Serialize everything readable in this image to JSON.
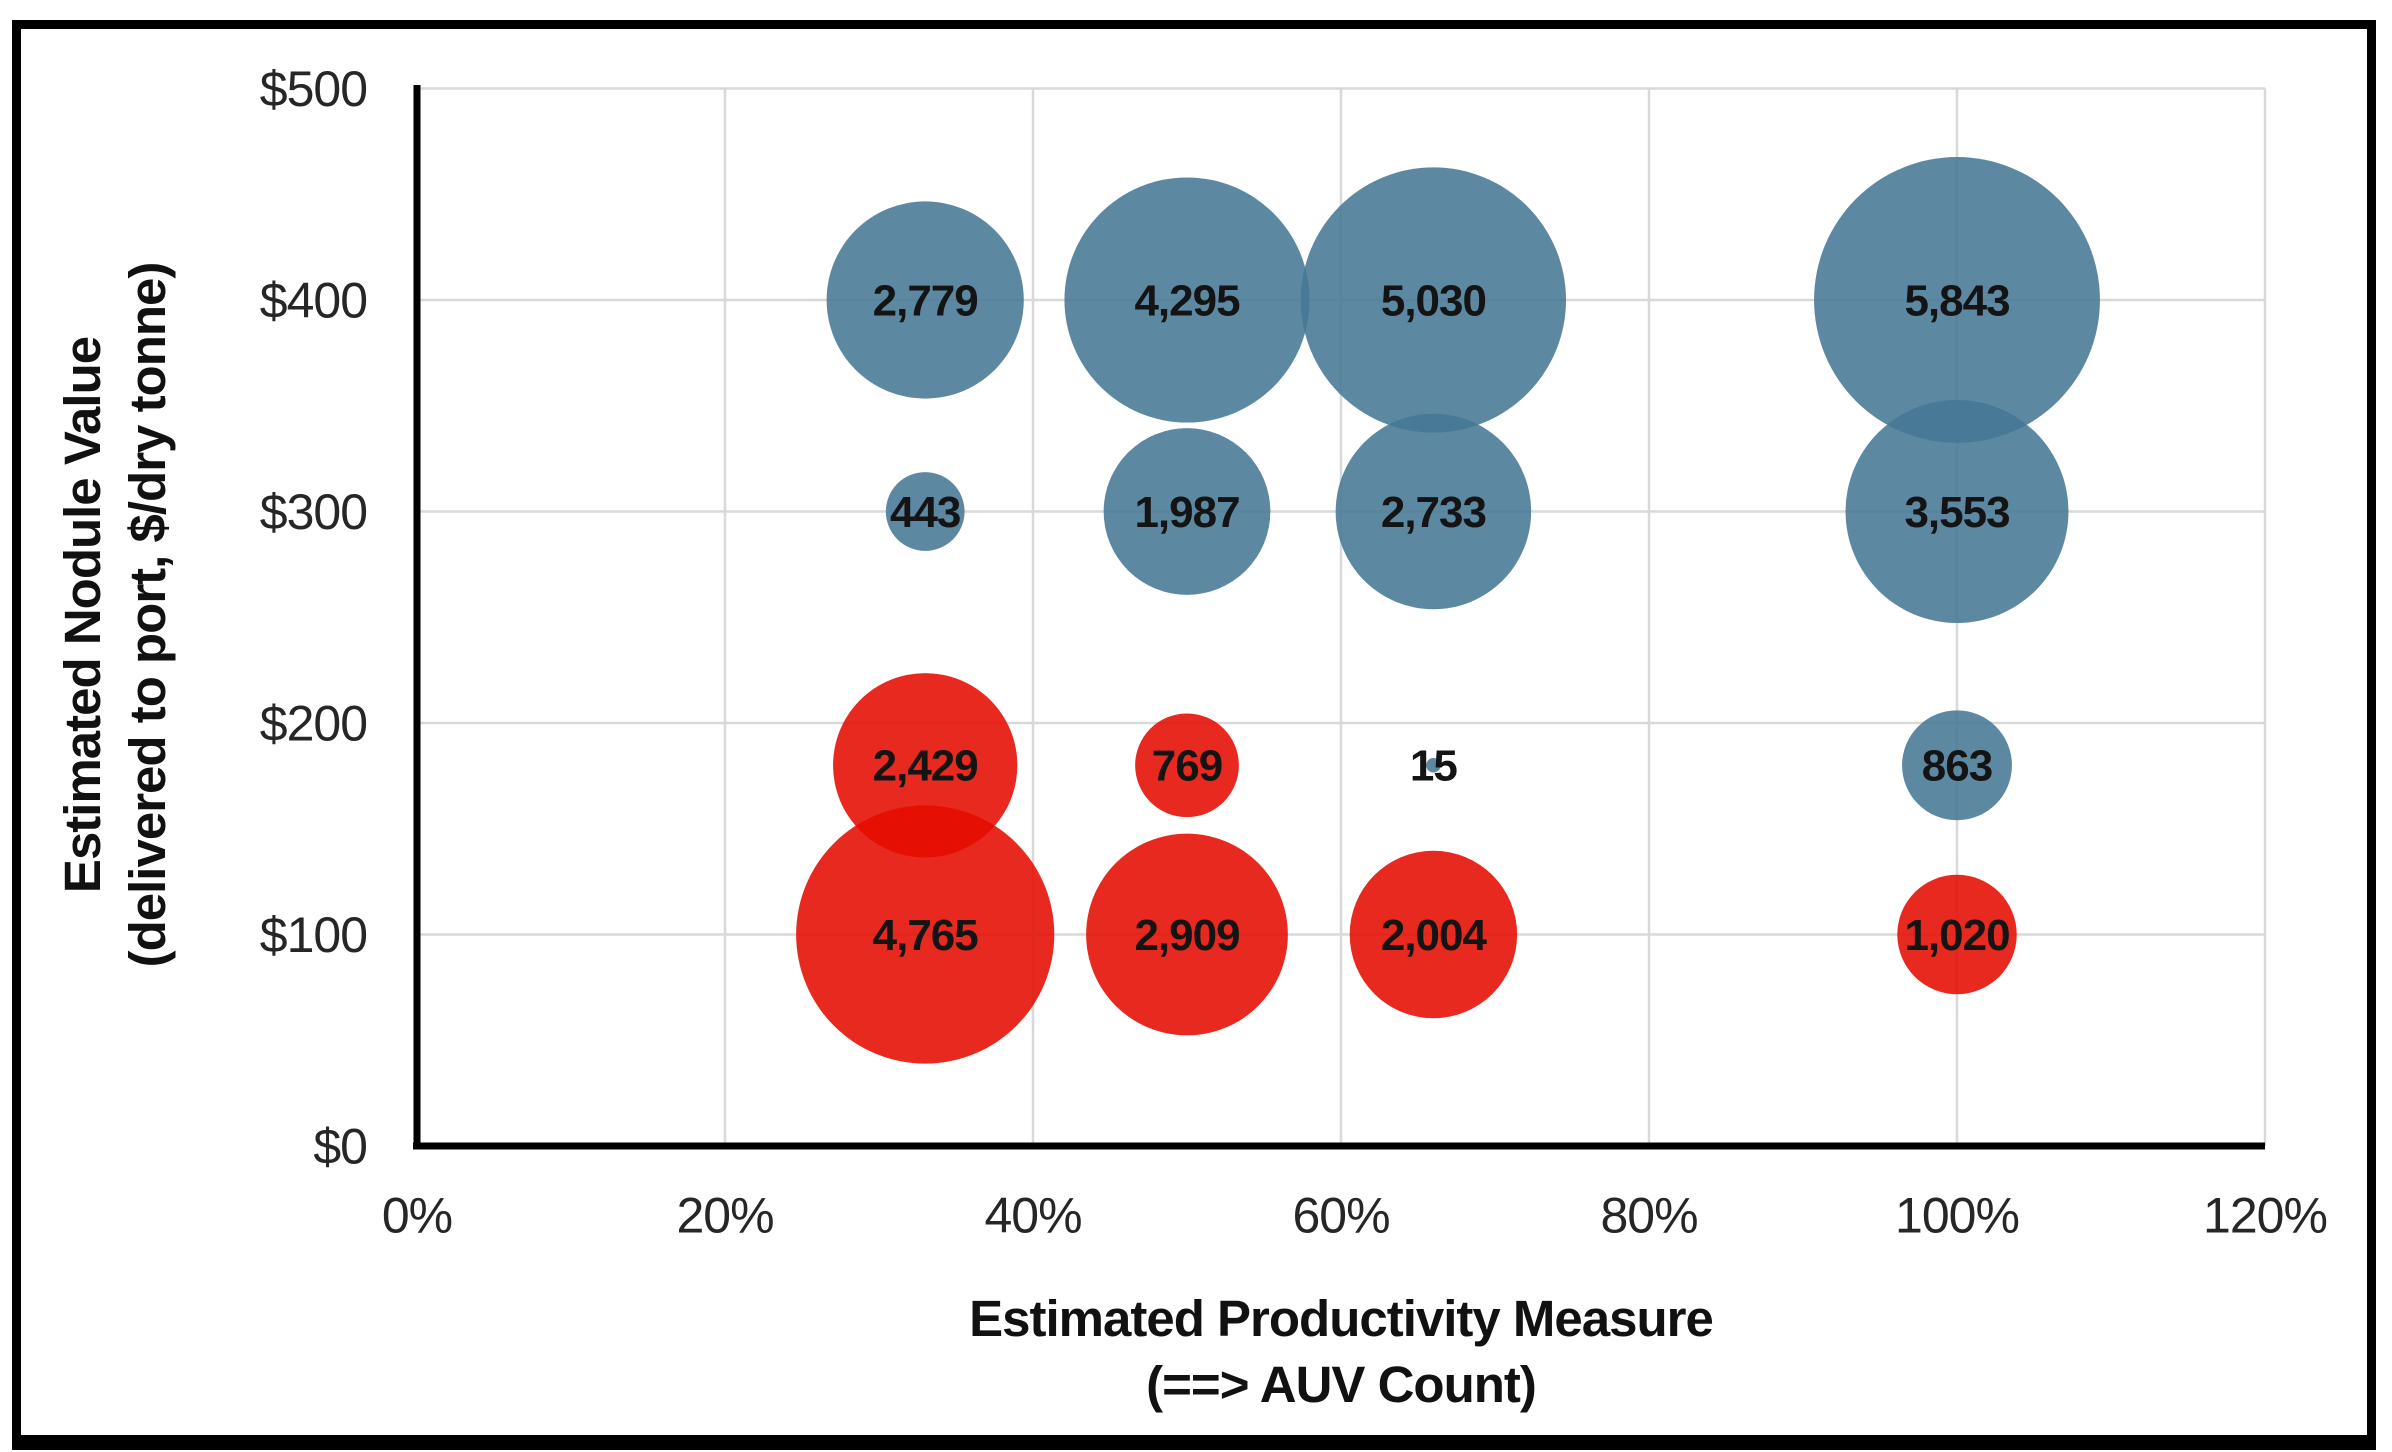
{
  "chart_data": {
    "type": "scatter",
    "variant": "bubble",
    "title": "",
    "xlabel_lines": [
      "Estimated Productivity Measure",
      "(==> AUV Count)"
    ],
    "ylabel_lines": [
      "Estimated Nodule Value",
      "(delivered to port, $/dry tonne)"
    ],
    "xlim": [
      0,
      120
    ],
    "ylim": [
      0,
      500
    ],
    "grid": true,
    "legend": "none",
    "size_encoding": "bubble area proportional to labeled value",
    "x_ticks": [
      {
        "label": "0%",
        "value": 0
      },
      {
        "label": "20%",
        "value": 20
      },
      {
        "label": "40%",
        "value": 40
      },
      {
        "label": "60%",
        "value": 60
      },
      {
        "label": "80%",
        "value": 80
      },
      {
        "label": "100%",
        "value": 100
      },
      {
        "label": "120%",
        "value": 120
      }
    ],
    "y_ticks": [
      {
        "label": "$0",
        "value": 0
      },
      {
        "label": "$100",
        "value": 100
      },
      {
        "label": "$200",
        "value": 200
      },
      {
        "label": "$300",
        "value": 300
      },
      {
        "label": "$400",
        "value": 400
      },
      {
        "label": "$500",
        "value": 500
      }
    ],
    "series": [
      {
        "name": "blue-scenarios",
        "color": "#457795",
        "points": [
          {
            "x": 33,
            "y": 400,
            "value": 2779,
            "label": "2,779"
          },
          {
            "x": 50,
            "y": 400,
            "value": 4295,
            "label": "4,295"
          },
          {
            "x": 66,
            "y": 400,
            "value": 5030,
            "label": "5,030"
          },
          {
            "x": 100,
            "y": 400,
            "value": 5843,
            "label": "5,843"
          },
          {
            "x": 33,
            "y": 300,
            "value": 443,
            "label": "443"
          },
          {
            "x": 50,
            "y": 300,
            "value": 1987,
            "label": "1,987"
          },
          {
            "x": 66,
            "y": 300,
            "value": 2733,
            "label": "2,733"
          },
          {
            "x": 100,
            "y": 300,
            "value": 3553,
            "label": "3,553"
          },
          {
            "x": 66,
            "y": 180,
            "value": 15,
            "label": "15"
          },
          {
            "x": 100,
            "y": 180,
            "value": 863,
            "label": "863"
          }
        ]
      },
      {
        "name": "red-scenarios",
        "color": "#E50B00",
        "points": [
          {
            "x": 33,
            "y": 180,
            "value": 2429,
            "label": "2,429"
          },
          {
            "x": 50,
            "y": 180,
            "value": 769,
            "label": "769"
          },
          {
            "x": 33,
            "y": 100,
            "value": 4765,
            "label": "4,765"
          },
          {
            "x": 50,
            "y": 100,
            "value": 2909,
            "label": "2,909"
          },
          {
            "x": 66,
            "y": 100,
            "value": 2004,
            "label": "2,004"
          },
          {
            "x": 100,
            "y": 100,
            "value": 1020,
            "label": "1,020"
          }
        ]
      }
    ],
    "style": {
      "bubble_opacity": 0.88,
      "gridline_color": "#D9D9D9",
      "axis_line_color": "#000000",
      "label_color": "#141414",
      "frame_color": "#000000"
    }
  }
}
